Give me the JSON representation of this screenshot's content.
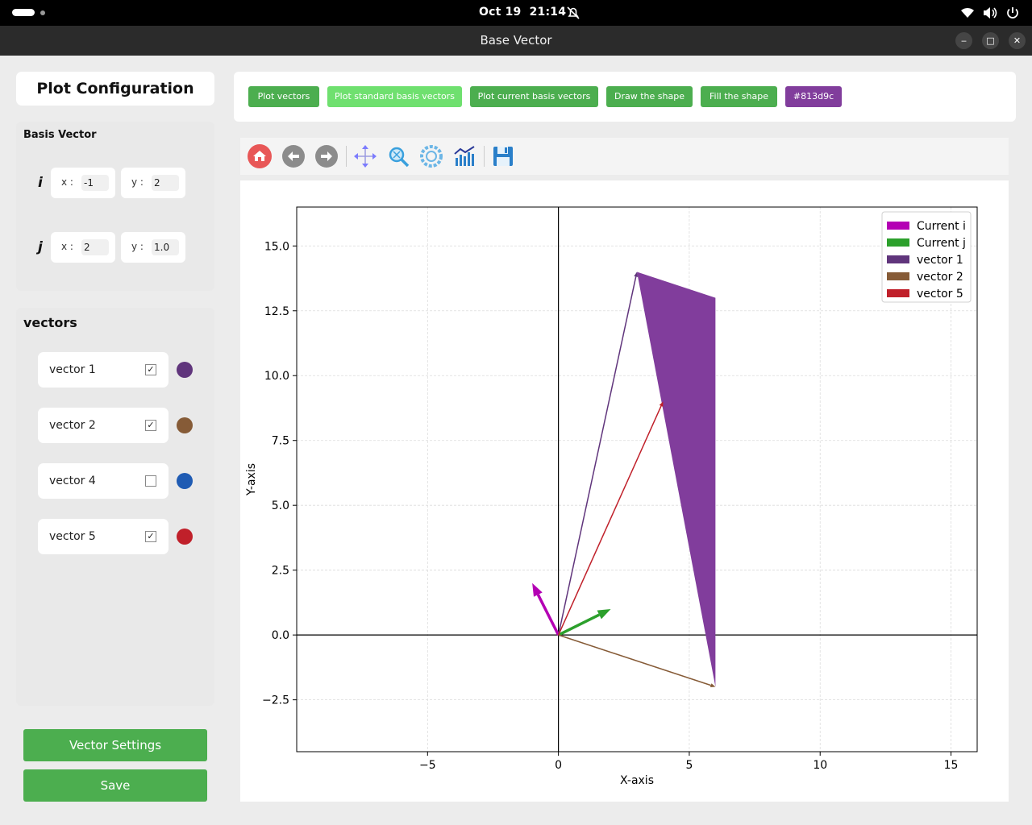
{
  "system": {
    "date": "Oct 19",
    "time": "21:14"
  },
  "window": {
    "title": "Base Vector"
  },
  "sidebar": {
    "title": "Plot Configuration",
    "basis": {
      "header": "Basis Vector",
      "i": {
        "label": "i",
        "x_key": "x :",
        "x": "-1",
        "y_key": "y :",
        "y": "2"
      },
      "j": {
        "label": "j",
        "x_key": "x :",
        "x": "2",
        "y_key": "y :",
        "y": "1.0"
      }
    },
    "vectors_header": "vectors",
    "vectors": [
      {
        "name": "vector 1",
        "checked": "✓",
        "color": "#60357c"
      },
      {
        "name": "vector 2",
        "checked": "✓",
        "color": "#865b37"
      },
      {
        "name": "vector 4",
        "checked": "",
        "color": "#1f5bb3"
      },
      {
        "name": "vector 5",
        "checked": "✓",
        "color": "#c0202a"
      }
    ],
    "settings_label": "Vector Settings",
    "save_label": "Save"
  },
  "actions": {
    "plot_vectors": "Plot vectors",
    "plot_standard": "Plot standard basis vectors",
    "plot_current": "Plot current basis vectors",
    "draw_shape": "Draw the shape",
    "fill_shape": "Fill the shape",
    "fill_color": "#813d9c"
  },
  "nav_icons": [
    "home-icon",
    "back-icon",
    "forward-icon",
    "pan-icon",
    "zoom-icon",
    "configure-icon",
    "edit-axes-icon",
    "save-figure-icon"
  ],
  "chart_data": {
    "type": "line",
    "xlabel": "X-axis",
    "ylabel": "Y-axis",
    "xlim": [
      -10,
      16
    ],
    "ylim": [
      -4.5,
      16.5
    ],
    "xticks": [
      -5,
      0,
      5,
      10,
      15
    ],
    "xtick_labels": [
      "−5",
      "0",
      "5",
      "10",
      "15"
    ],
    "yticks": [
      -2.5,
      0,
      2.5,
      5,
      7.5,
      10,
      12.5,
      15
    ],
    "ytick_labels": [
      "−2.5",
      "0.0",
      "2.5",
      "5.0",
      "7.5",
      "10.0",
      "12.5",
      "15.0"
    ],
    "grid": true,
    "legend_position": "top-right",
    "series": [
      {
        "name": "Current i",
        "from": [
          0,
          0
        ],
        "to": [
          -1,
          2
        ],
        "color": "#b400b4"
      },
      {
        "name": "Current j",
        "from": [
          0,
          0
        ],
        "to": [
          2,
          1
        ],
        "color": "#2ca02c"
      },
      {
        "name": "vector 1",
        "from": [
          0,
          0
        ],
        "to": [
          3,
          14
        ],
        "color": "#60357c"
      },
      {
        "name": "vector 2",
        "from": [
          0,
          0
        ],
        "to": [
          6,
          -2
        ],
        "color": "#865b37"
      },
      {
        "name": "vector 5",
        "from": [
          0,
          0
        ],
        "to": [
          4,
          9
        ],
        "color": "#c0202a"
      }
    ],
    "filled_shape": {
      "points": [
        [
          3,
          14
        ],
        [
          6,
          13
        ],
        [
          6,
          -2
        ]
      ],
      "color": "#813d9c"
    }
  }
}
